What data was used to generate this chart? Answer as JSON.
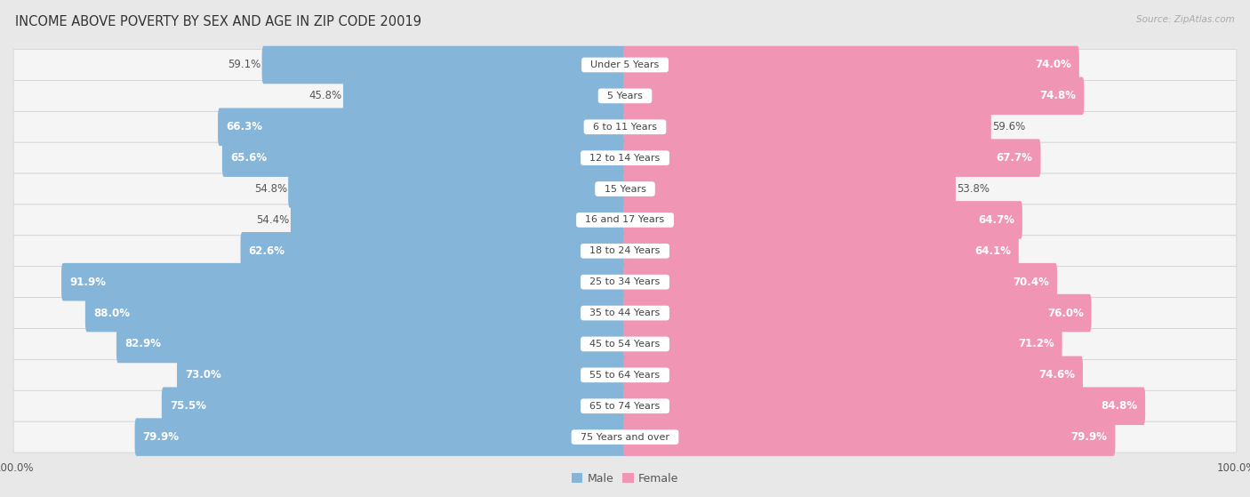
{
  "title": "INCOME ABOVE POVERTY BY SEX AND AGE IN ZIP CODE 20019",
  "source": "Source: ZipAtlas.com",
  "categories": [
    "Under 5 Years",
    "5 Years",
    "6 to 11 Years",
    "12 to 14 Years",
    "15 Years",
    "16 and 17 Years",
    "18 to 24 Years",
    "25 to 34 Years",
    "35 to 44 Years",
    "45 to 54 Years",
    "55 to 64 Years",
    "65 to 74 Years",
    "75 Years and over"
  ],
  "male_values": [
    59.1,
    45.8,
    66.3,
    65.6,
    54.8,
    54.4,
    62.6,
    91.9,
    88.0,
    82.9,
    73.0,
    75.5,
    79.9
  ],
  "female_values": [
    74.0,
    74.8,
    59.6,
    67.7,
    53.8,
    64.7,
    64.1,
    70.4,
    76.0,
    71.2,
    74.6,
    84.8,
    79.9
  ],
  "male_color": "#85b5d9",
  "female_color": "#f096b4",
  "background_color": "#e8e8e8",
  "row_bg_color": "#f5f5f5",
  "row_border_color": "#d0d0d0",
  "max_value": 100.0,
  "title_fontsize": 10.5,
  "label_fontsize": 8.5,
  "axis_fontsize": 8.5,
  "legend_fontsize": 9,
  "inside_label_threshold": 60
}
